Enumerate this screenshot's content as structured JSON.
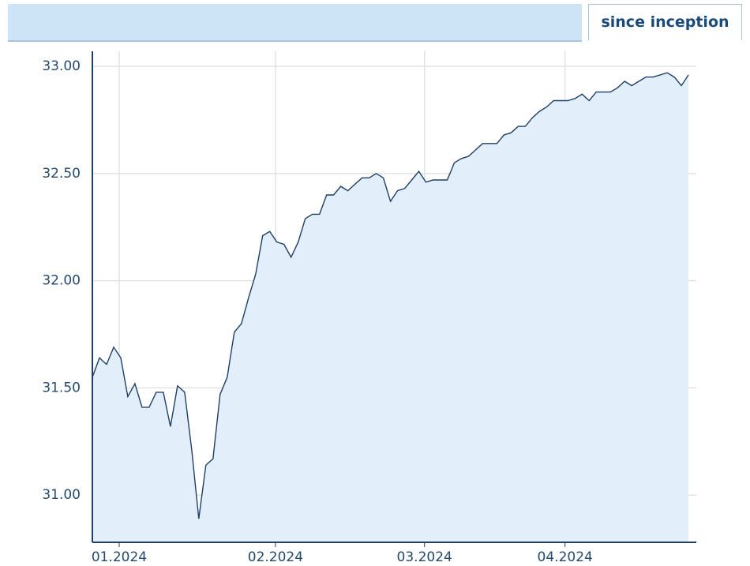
{
  "tabs": [
    "since inception"
  ],
  "chart_data": {
    "type": "area",
    "x": [
      0,
      1,
      2,
      3,
      4,
      5,
      6,
      7,
      8,
      9,
      10,
      11,
      12,
      13,
      14,
      15,
      16,
      17,
      18,
      19,
      20,
      21,
      22,
      23,
      24,
      25,
      26,
      27,
      28,
      29,
      30,
      31,
      32,
      33,
      34,
      35,
      36,
      37,
      38,
      39,
      40,
      41,
      42,
      43,
      44,
      45,
      46,
      47,
      48,
      49,
      50,
      51,
      52,
      53,
      54,
      55,
      56,
      57,
      58,
      59,
      60,
      61,
      62,
      63,
      64,
      65,
      66,
      67,
      68,
      69,
      70,
      71,
      72,
      73,
      74,
      75,
      76,
      77,
      78,
      79,
      80,
      81,
      82,
      83,
      84
    ],
    "series": [
      {
        "color": "#1f3f66",
        "fill": "#e2eef9",
        "values": [
          31.55,
          31.64,
          31.61,
          31.69,
          31.64,
          31.46,
          31.52,
          31.41,
          31.41,
          31.48,
          31.48,
          31.32,
          31.51,
          31.48,
          31.21,
          30.89,
          31.14,
          31.17,
          31.47,
          31.55,
          31.76,
          31.8,
          31.92,
          32.03,
          32.21,
          32.23,
          32.18,
          32.17,
          32.11,
          32.18,
          32.29,
          32.31,
          32.31,
          32.4,
          32.4,
          32.44,
          32.42,
          32.45,
          32.48,
          32.48,
          32.5,
          32.48,
          32.37,
          32.42,
          32.43,
          32.47,
          32.51,
          32.46,
          32.47,
          32.47,
          32.47,
          32.55,
          32.57,
          32.58,
          32.61,
          32.64,
          32.64,
          32.64,
          32.68,
          32.69,
          32.72,
          32.72,
          32.76,
          32.79,
          32.81,
          32.84,
          32.84,
          32.84,
          32.85,
          32.87,
          32.84,
          32.88,
          32.88,
          32.88,
          32.9,
          32.93,
          32.91,
          32.93,
          32.95,
          32.95,
          32.96,
          32.97,
          32.95,
          32.91,
          32.96
        ]
      }
    ],
    "xlim": [
      0,
      85.1
    ],
    "xticks": [
      {
        "value": 3.78,
        "label": "01.2024"
      },
      {
        "value": 25.8,
        "label": "02.2024"
      },
      {
        "value": 46.8,
        "label": "03.2024"
      },
      {
        "value": 66.6,
        "label": "04.2024"
      }
    ],
    "ylim": [
      30.78,
      33.07
    ],
    "yticks": [
      {
        "value": 31,
        "label": "31.00"
      },
      {
        "value": 31.5,
        "label": "31.50"
      },
      {
        "value": 32,
        "label": "32.00"
      },
      {
        "value": 32.5,
        "label": "32.50"
      },
      {
        "value": 33,
        "label": "33.00"
      }
    ],
    "grid": true
  }
}
